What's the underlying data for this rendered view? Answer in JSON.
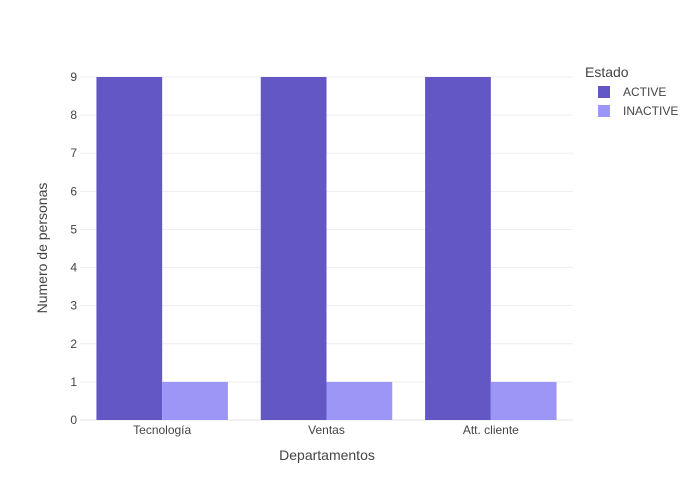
{
  "chart_data": {
    "type": "bar",
    "categories": [
      "Tecnología",
      "Ventas",
      "Att. cliente"
    ],
    "series": [
      {
        "name": "ACTIVE",
        "values": [
          9,
          9,
          9
        ],
        "color": "#6257c4"
      },
      {
        "name": "INACTIVE",
        "values": [
          1,
          1,
          1
        ],
        "color": "#9c97f7"
      }
    ],
    "xlabel": "Departamentos",
    "ylabel": "Numero de personas",
    "ylim": [
      0,
      9
    ],
    "yticks": [
      0,
      1,
      2,
      3,
      4,
      5,
      6,
      7,
      8,
      9
    ],
    "grid": true,
    "legend": {
      "title": "Estado",
      "placement": "top-right"
    },
    "barmode": "group"
  }
}
